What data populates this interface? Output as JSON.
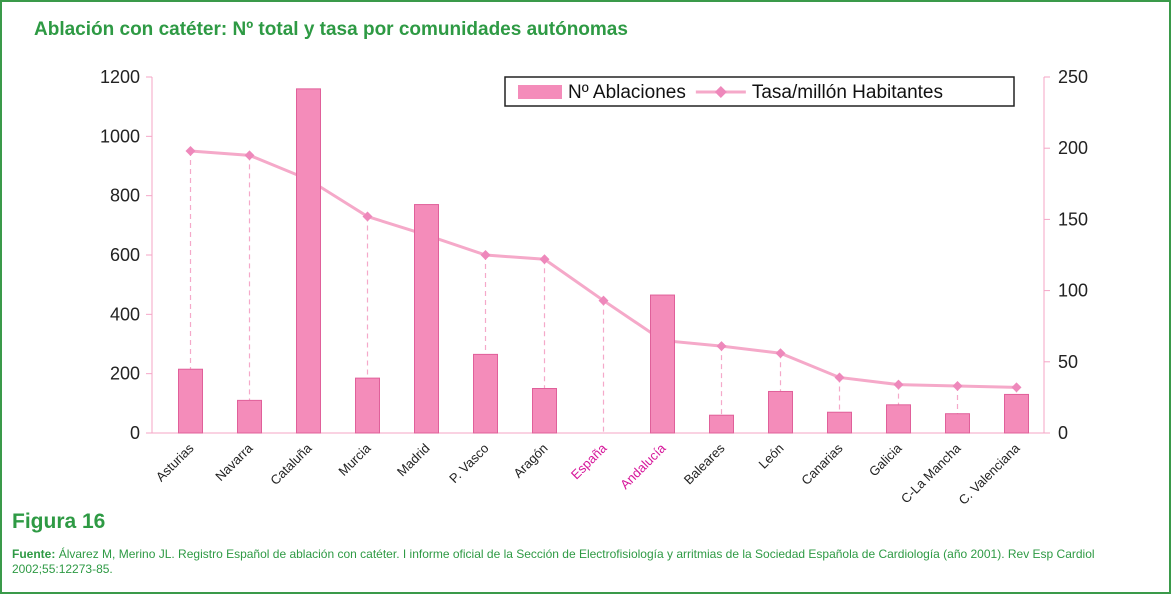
{
  "title": "Ablación con catéter: Nº total y tasa por comunidades autónomas",
  "chart_data": {
    "type": "bar_line",
    "categories": [
      "Asturias",
      "Navarra",
      "Cataluña",
      "Murcia",
      "Madrid",
      "P. Vasco",
      "Aragón",
      "España",
      "Andalucía",
      "Baleares",
      "León",
      "Canarias",
      "Galicia",
      "C-La Mancha",
      "C. Valenciana"
    ],
    "series": [
      {
        "name": "Nº Ablaciones",
        "type": "bar",
        "color": "#f48cba",
        "axis": "y",
        "values": [
          215,
          110,
          1160,
          185,
          770,
          265,
          150,
          null,
          465,
          60,
          140,
          70,
          95,
          65,
          130
        ]
      },
      {
        "name": "Tasa/millón Habitantes",
        "type": "line",
        "color": "#f5a9c9",
        "axis": "y2",
        "values": [
          198,
          195,
          178,
          152,
          139,
          125,
          122,
          93,
          65,
          61,
          56,
          39,
          34,
          33,
          32
        ]
      }
    ],
    "ylim": [
      0,
      1200
    ],
    "yticks": [
      0,
      200,
      400,
      600,
      800,
      1000,
      1200
    ],
    "y2lim": [
      0,
      250
    ],
    "y2ticks": [
      0,
      50,
      100,
      150,
      200,
      250
    ],
    "highlight_indices": [
      7,
      8
    ],
    "highlight_color": "#d6169a",
    "legend": "top-right"
  },
  "figure_label": "Figura 16",
  "source_label": "Fuente:",
  "source_text": "Álvarez M, Merino JL. Registro Español de ablación con catéter. I informe oficial de la Sección de Electrofisiología y arritmias de la Sociedad Española de Cardiología (año 2001). Rev Esp Cardiol 2002;55:12273-85."
}
